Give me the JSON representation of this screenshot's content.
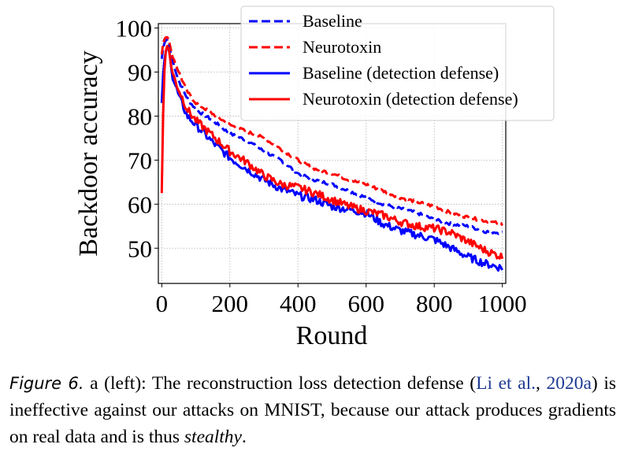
{
  "chart_data": {
    "type": "line",
    "xlabel": "Round",
    "ylabel": "Backdoor accuracy",
    "xlim": [
      -10,
      1010
    ],
    "ylim": [
      42,
      101
    ],
    "xticks": [
      0,
      200,
      400,
      600,
      800,
      1000
    ],
    "yticks": [
      50,
      60,
      70,
      80,
      90,
      100
    ],
    "grid": true,
    "legend_position": "top-right",
    "series": [
      {
        "name": "Baseline",
        "color": "#0000ff",
        "style": "dashed",
        "x": [
          0,
          5,
          10,
          15,
          20,
          30,
          50,
          75,
          100,
          150,
          200,
          250,
          300,
          350,
          400,
          450,
          500,
          550,
          600,
          650,
          700,
          750,
          800,
          850,
          900,
          950,
          1000
        ],
        "y": [
          93,
          96,
          97,
          97.5,
          96.5,
          93,
          88,
          84,
          81.5,
          79,
          76,
          74.5,
          72,
          70,
          67,
          65.5,
          64.5,
          63,
          61.5,
          60,
          59,
          58,
          56.5,
          55.5,
          55,
          53.8,
          53.5
        ]
      },
      {
        "name": "Neurotoxin",
        "color": "#ff0000",
        "style": "dashed",
        "x": [
          0,
          5,
          10,
          15,
          20,
          30,
          50,
          75,
          100,
          150,
          200,
          250,
          300,
          350,
          400,
          450,
          500,
          550,
          600,
          650,
          700,
          750,
          800,
          850,
          900,
          950,
          1000
        ],
        "y": [
          94,
          97,
          97.8,
          98,
          97.5,
          94,
          90,
          85.5,
          83,
          80.5,
          78,
          76.5,
          75,
          72.5,
          70,
          68,
          67,
          65.5,
          64.5,
          63,
          61.5,
          60.5,
          59.5,
          58,
          57,
          56.2,
          55.5
        ]
      },
      {
        "name": "Baseline (detection defense)",
        "color": "#0000ff",
        "style": "solid",
        "x": [
          0,
          5,
          10,
          15,
          20,
          25,
          30,
          40,
          50,
          75,
          100,
          150,
          200,
          250,
          300,
          350,
          400,
          450,
          500,
          550,
          600,
          650,
          700,
          750,
          800,
          850,
          900,
          950,
          1000
        ],
        "y": [
          83,
          91,
          94,
          95.5,
          96,
          93,
          89.5,
          87,
          84.5,
          80,
          78,
          74,
          70.5,
          68,
          65.5,
          63.5,
          62,
          61,
          59.5,
          58.8,
          58,
          55.5,
          54,
          53,
          52,
          50,
          48,
          46.5,
          45.5
        ]
      },
      {
        "name": "Neurotoxin (detection defense)",
        "color": "#ff0000",
        "style": "solid",
        "x": [
          0,
          5,
          10,
          15,
          20,
          25,
          30,
          40,
          50,
          75,
          100,
          150,
          200,
          250,
          300,
          350,
          400,
          450,
          500,
          550,
          600,
          650,
          700,
          750,
          800,
          850,
          900,
          950,
          1000
        ],
        "y": [
          62.5,
          85,
          94,
          96,
          95.5,
          93,
          90,
          88,
          86,
          81.5,
          79,
          75.5,
          72,
          69.5,
          66.5,
          64.5,
          63.8,
          62.5,
          61,
          59.5,
          58.5,
          57.5,
          56,
          55,
          54.5,
          53.5,
          51.5,
          49.5,
          48
        ]
      }
    ]
  },
  "caption": {
    "label": "Figure 6.",
    "text_1": " a (left): The reconstruction loss detection defense (",
    "cite_1": "Li et al.",
    "sep": ", ",
    "cite_2": "2020a",
    "text_2": ") is ineffective against our attacks on MNIST, because our attack produces gradients on real data and is thus ",
    "emph": "stealthy",
    "text_3": "."
  }
}
